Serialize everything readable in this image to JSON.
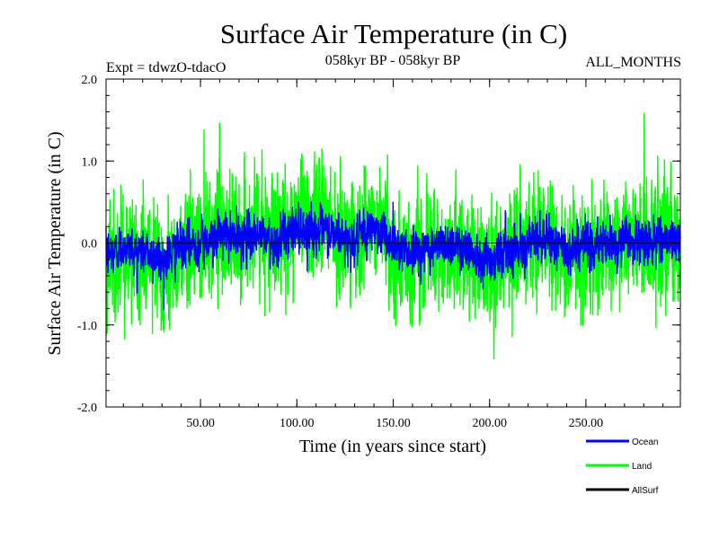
{
  "chart_data": {
    "type": "line",
    "title": "Surface Air Temperature (in C)",
    "subtitle_left": "Expt = tdwzO-tdacO",
    "subtitle_center": "058kyr BP - 058kyr BP",
    "subtitle_right": "ALL_MONTHS",
    "xlabel": "Time (in years since start)",
    "ylabel": "Surface Air Temperature (in C)",
    "xlim": [
      1,
      299
    ],
    "ylim": [
      -2.0,
      2.0
    ],
    "x_ticks": [
      50,
      100,
      150,
      200,
      250
    ],
    "x_tick_labels": [
      "50.00",
      "100.00",
      "150.00",
      "200.00",
      "250.00"
    ],
    "y_ticks": [
      -2.0,
      -1.0,
      0.0,
      1.0,
      2.0
    ],
    "y_tick_labels": [
      "-2.0",
      "-1.0",
      "0.0",
      "1.0",
      "2.0"
    ],
    "zero_line": true,
    "legend_position": "bottom-right",
    "series": [
      {
        "name": "Ocean",
        "color": "#0000ff",
        "x": [
          1,
          10,
          20,
          30,
          40,
          50,
          60,
          70,
          80,
          90,
          100,
          110,
          120,
          130,
          140,
          150,
          160,
          170,
          180,
          190,
          200,
          210,
          220,
          230,
          240,
          250,
          260,
          270,
          280,
          290,
          299
        ],
        "y": [
          -0.15,
          -0.05,
          -0.1,
          -0.2,
          -0.05,
          0.0,
          0.1,
          0.05,
          0.1,
          0.0,
          0.2,
          0.15,
          0.1,
          0.0,
          0.2,
          0.0,
          -0.1,
          -0.05,
          0.0,
          -0.1,
          -0.2,
          -0.05,
          0.0,
          0.05,
          -0.1,
          0.0,
          -0.05,
          0.05,
          0.0,
          0.05,
          0.0
        ]
      },
      {
        "name": "Land",
        "color": "#00ff00",
        "x": [
          1,
          10,
          20,
          30,
          40,
          50,
          60,
          70,
          80,
          90,
          100,
          110,
          120,
          130,
          140,
          150,
          160,
          170,
          180,
          190,
          200,
          210,
          220,
          230,
          240,
          250,
          260,
          270,
          280,
          290,
          299
        ],
        "y": [
          -0.3,
          -0.1,
          -0.2,
          -0.35,
          -0.1,
          0.0,
          0.2,
          0.1,
          0.2,
          0.0,
          0.35,
          0.3,
          0.2,
          0.0,
          0.4,
          0.0,
          -0.2,
          -0.1,
          0.0,
          -0.2,
          -0.35,
          -0.1,
          0.0,
          0.1,
          -0.2,
          0.0,
          -0.1,
          0.1,
          0.0,
          0.1,
          0.0
        ]
      },
      {
        "name": "AllSurf",
        "color": "#000000",
        "x": [],
        "y": []
      }
    ]
  }
}
